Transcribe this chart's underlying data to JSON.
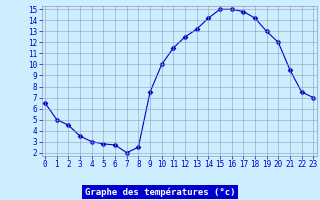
{
  "x": [
    0,
    1,
    2,
    3,
    4,
    5,
    6,
    7,
    8,
    9,
    10,
    11,
    12,
    13,
    14,
    15,
    16,
    17,
    18,
    19,
    20,
    21,
    22,
    23
  ],
  "y": [
    6.5,
    5.0,
    4.5,
    3.5,
    3.0,
    2.8,
    2.7,
    2.0,
    2.5,
    7.5,
    10.0,
    11.5,
    12.5,
    13.2,
    14.2,
    15.0,
    15.0,
    14.8,
    14.2,
    13.0,
    12.0,
    9.5,
    7.5,
    7.0
  ],
  "line_color": "#0000cc",
  "marker": "D",
  "marker_size": 2.5,
  "bg_color": "#cceeff",
  "plot_bg_color": "#cceeff",
  "grid_color": "#9999bb",
  "xlabel": "Graphe des températures (°c)",
  "tick_color": "#0000cc",
  "xlim": [
    0,
    23
  ],
  "ylim": [
    2,
    15
  ],
  "yticks": [
    2,
    3,
    4,
    5,
    6,
    7,
    8,
    9,
    10,
    11,
    12,
    13,
    14,
    15
  ],
  "xticks": [
    0,
    1,
    2,
    3,
    4,
    5,
    6,
    7,
    8,
    9,
    10,
    11,
    12,
    13,
    14,
    15,
    16,
    17,
    18,
    19,
    20,
    21,
    22,
    23
  ],
  "xlabel_bg": "#0000cc",
  "xlabel_fg": "#ffffff",
  "xlabel_fontsize": 6.5,
  "tick_fontsize": 5.5
}
